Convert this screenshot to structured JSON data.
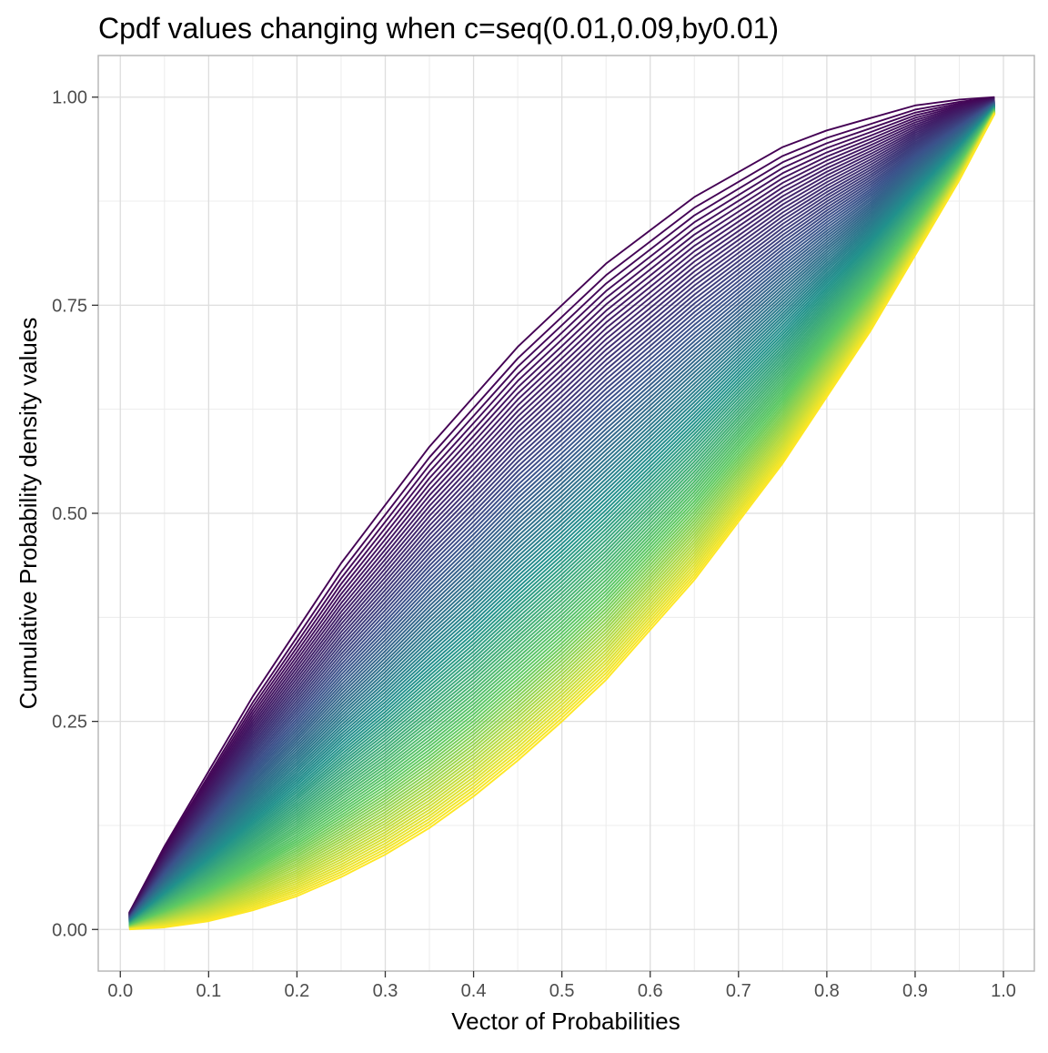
{
  "chart_data": {
    "type": "line",
    "title": "Cpdf values changing when c=seq(0.01,0.09,by0.01)",
    "xlabel": "Vector of Probabilities",
    "ylabel": "Cumulative Probability density values",
    "xlim": [
      -0.025,
      1.035
    ],
    "ylim": [
      -0.05,
      1.05
    ],
    "x_ticks": [
      0.0,
      0.1,
      0.2,
      0.3,
      0.4,
      0.5,
      0.6,
      0.7,
      0.8,
      0.9,
      1.0
    ],
    "x_tick_labels": [
      "0.0",
      "0.1",
      "0.2",
      "0.3",
      "0.4",
      "0.5",
      "0.6",
      "0.7",
      "0.8",
      "0.9",
      "1.0"
    ],
    "y_ticks": [
      0.0,
      0.25,
      0.5,
      0.75,
      1.0
    ],
    "y_tick_labels": [
      "0.00",
      "0.25",
      "0.50",
      "0.75",
      "1.00"
    ],
    "grid": true,
    "legend": "none",
    "x_range": [
      0.01,
      0.99
    ],
    "colormap": "viridis",
    "colors": [
      "#440154",
      "#3b528b",
      "#21918c",
      "#5ec962",
      "#fde725"
    ],
    "series_count": 99,
    "series_envelope": {
      "x": [
        0.01,
        0.05,
        0.1,
        0.15,
        0.2,
        0.25,
        0.3,
        0.35,
        0.4,
        0.45,
        0.5,
        0.55,
        0.6,
        0.65,
        0.7,
        0.75,
        0.8,
        0.85,
        0.9,
        0.95,
        0.99
      ],
      "upper": [
        0.02,
        0.1,
        0.19,
        0.28,
        0.36,
        0.44,
        0.51,
        0.58,
        0.64,
        0.7,
        0.75,
        0.8,
        0.84,
        0.88,
        0.91,
        0.94,
        0.96,
        0.975,
        0.99,
        0.997,
        1.0
      ],
      "lower": [
        0.0001,
        0.0025,
        0.01,
        0.023,
        0.04,
        0.063,
        0.09,
        0.122,
        0.16,
        0.203,
        0.25,
        0.3,
        0.36,
        0.42,
        0.49,
        0.56,
        0.64,
        0.72,
        0.81,
        0.9,
        0.98
      ]
    }
  }
}
